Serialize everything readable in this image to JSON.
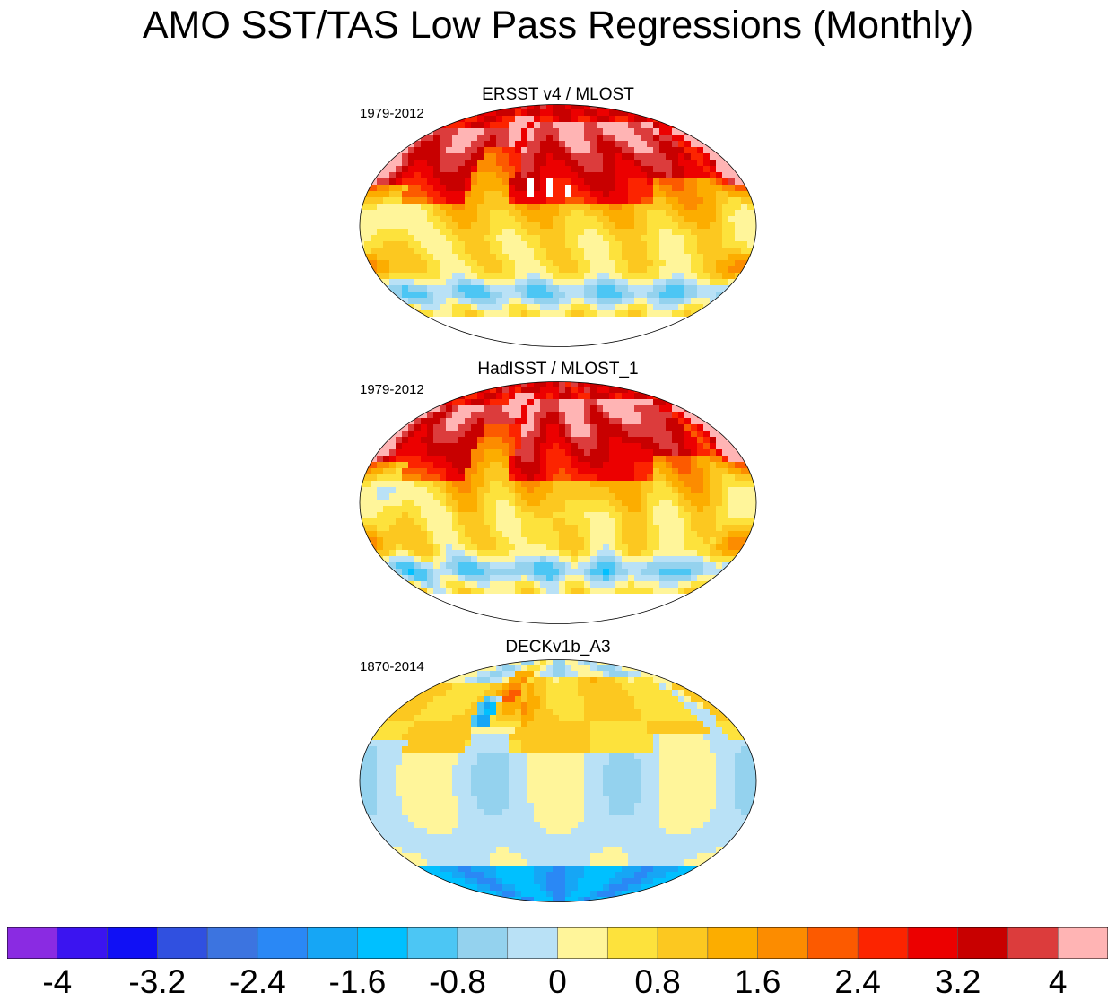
{
  "title": "AMO SST/TAS Low Pass Regressions (Monthly)",
  "panels": [
    {
      "title": "ERSST v4 / MLOST",
      "period": "1979-2012",
      "pattern": "obs1"
    },
    {
      "title": "HadISST / MLOST_1",
      "period": "1979-2012",
      "pattern": "obs2"
    },
    {
      "title": "DECKv1b_A3",
      "period": "1870-2014",
      "pattern": "model"
    }
  ],
  "colorbar": {
    "colors": [
      "#8a2be2",
      "#3b14f0",
      "#1010f5",
      "#3050e0",
      "#3c74e0",
      "#2a88f5",
      "#16a6f5",
      "#00c0ff",
      "#4cc6f4",
      "#94d2ee",
      "#b9e1f6",
      "#fff59a",
      "#fde23c",
      "#fcc820",
      "#fcad00",
      "#fc8c00",
      "#fc5a00",
      "#fc2400",
      "#ec0000",
      "#c80000",
      "#dc3c3c",
      "#ffb4b4"
    ],
    "tick_labels": [
      "-4",
      "-3.2",
      "-2.4",
      "-1.6",
      "-0.8",
      "0",
      "0.8",
      "1.6",
      "2.4",
      "3.2",
      "4"
    ],
    "tick_values": [
      -4,
      -3.2,
      -2.4,
      -1.6,
      -0.8,
      0,
      0.8,
      1.6,
      2.4,
      3.2,
      4
    ]
  }
}
